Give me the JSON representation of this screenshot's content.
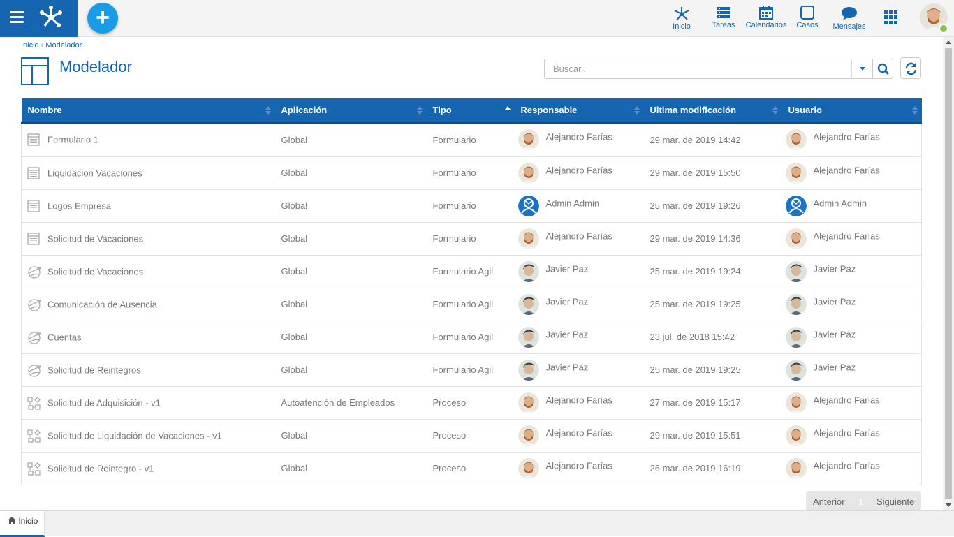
{
  "topnav": {
    "items": [
      {
        "label": "Inicio",
        "icon": "process-home-icon"
      },
      {
        "label": "Tareas",
        "icon": "tasks-icon"
      },
      {
        "label": "Calendarios",
        "icon": "calendar-icon"
      },
      {
        "label": "Casos",
        "icon": "cases-icon"
      },
      {
        "label": "Mensajes",
        "icon": "messages-icon"
      }
    ]
  },
  "breadcrumb": {
    "home": "Inicio",
    "separator": "›",
    "current": "Modelador"
  },
  "page": {
    "title": "Modelador"
  },
  "search": {
    "placeholder": "Buscar.."
  },
  "table": {
    "columns": [
      "Nombre",
      "Aplicación",
      "Tipo",
      "Responsable",
      "Ultima modificación",
      "Usuario"
    ],
    "sorted_column": "Tipo",
    "sort_direction": "ascending",
    "rows": [
      {
        "icon": "form-icon",
        "name": "Formulario 1",
        "app": "Global",
        "type": "Formulario",
        "owner": "Alejandro Farías",
        "owner_avatar": "alejandro",
        "modified": "29 mar. de 2019 14:42",
        "user": "Alejandro Farías",
        "user_avatar": "alejandro"
      },
      {
        "icon": "form-icon",
        "name": "Liquidacion Vacaciones",
        "app": "Global",
        "type": "Formulario",
        "owner": "Alejandro Farías",
        "owner_avatar": "alejandro",
        "modified": "29 mar. de 2019 15:50",
        "user": "Alejandro Farías",
        "user_avatar": "alejandro"
      },
      {
        "icon": "form-icon",
        "name": "Logos Empresa",
        "app": "Global",
        "type": "Formulario",
        "owner": "Admin Admin",
        "owner_avatar": "admin",
        "modified": "25 mar. de 2019 19:26",
        "user": "Admin Admin",
        "user_avatar": "admin"
      },
      {
        "icon": "form-icon",
        "name": "Solicitud de Vacaciones",
        "app": "Global",
        "type": "Formulario",
        "owner": "Alejandro Farías",
        "owner_avatar": "alejandro",
        "modified": "29 mar. de 2019 14:36",
        "user": "Alejandro Farías",
        "user_avatar": "alejandro"
      },
      {
        "icon": "agile-form-icon",
        "name": "Solicitud de Vacaciones",
        "app": "Global",
        "type": "Formulario Agil",
        "owner": "Javier Paz",
        "owner_avatar": "javier",
        "modified": "25 mar. de 2019 19:24",
        "user": "Javier Paz",
        "user_avatar": "javier"
      },
      {
        "icon": "agile-form-icon",
        "name": "Comunicación de Ausencia",
        "app": "Global",
        "type": "Formulario Agil",
        "owner": "Javier Paz",
        "owner_avatar": "javier",
        "modified": "25 mar. de 2019 19:25",
        "user": "Javier Paz",
        "user_avatar": "javier"
      },
      {
        "icon": "agile-form-icon",
        "name": "Cuentas",
        "app": "Global",
        "type": "Formulario Agil",
        "owner": "Javier Paz",
        "owner_avatar": "javier",
        "modified": "23 jul. de 2018 15:42",
        "user": "Javier Paz",
        "user_avatar": "javier"
      },
      {
        "icon": "agile-form-icon",
        "name": "Solicitud de Reintegros",
        "app": "Global",
        "type": "Formulario Agil",
        "owner": "Javier Paz",
        "owner_avatar": "javier",
        "modified": "25 mar. de 2019 19:25",
        "user": "Javier Paz",
        "user_avatar": "javier"
      },
      {
        "icon": "process-icon",
        "name": "Solicitud de Adquisición - v1",
        "app": "Autoatención de Empleados",
        "type": "Proceso",
        "owner": "Alejandro Farías",
        "owner_avatar": "alejandro",
        "modified": "27 mar. de 2019 15:17",
        "user": "Alejandro Farías",
        "user_avatar": "alejandro"
      },
      {
        "icon": "process-icon",
        "name": "Solicitud de Liquidación de Vacaciones - v1",
        "app": "Global",
        "type": "Proceso",
        "owner": "Alejandro Farías",
        "owner_avatar": "alejandro",
        "modified": "29 mar. de 2019 15:51",
        "user": "Alejandro Farías",
        "user_avatar": "alejandro"
      },
      {
        "icon": "process-icon",
        "name": "Solicitud de Reintegro - v1",
        "app": "Global",
        "type": "Proceso",
        "owner": "Alejandro Farías",
        "owner_avatar": "alejandro",
        "modified": "26 mar. de 2019 16:19",
        "user": "Alejandro Farías",
        "user_avatar": "alejandro"
      }
    ]
  },
  "pager": {
    "prev": "Anterior",
    "page": "1",
    "next": "Siguiente"
  },
  "bottom_tabs": [
    {
      "label": "Inicio",
      "icon": "home-icon"
    }
  ],
  "colors": {
    "primary": "#1565b0",
    "accent": "#1a9be6",
    "online": "#8bc34a"
  }
}
